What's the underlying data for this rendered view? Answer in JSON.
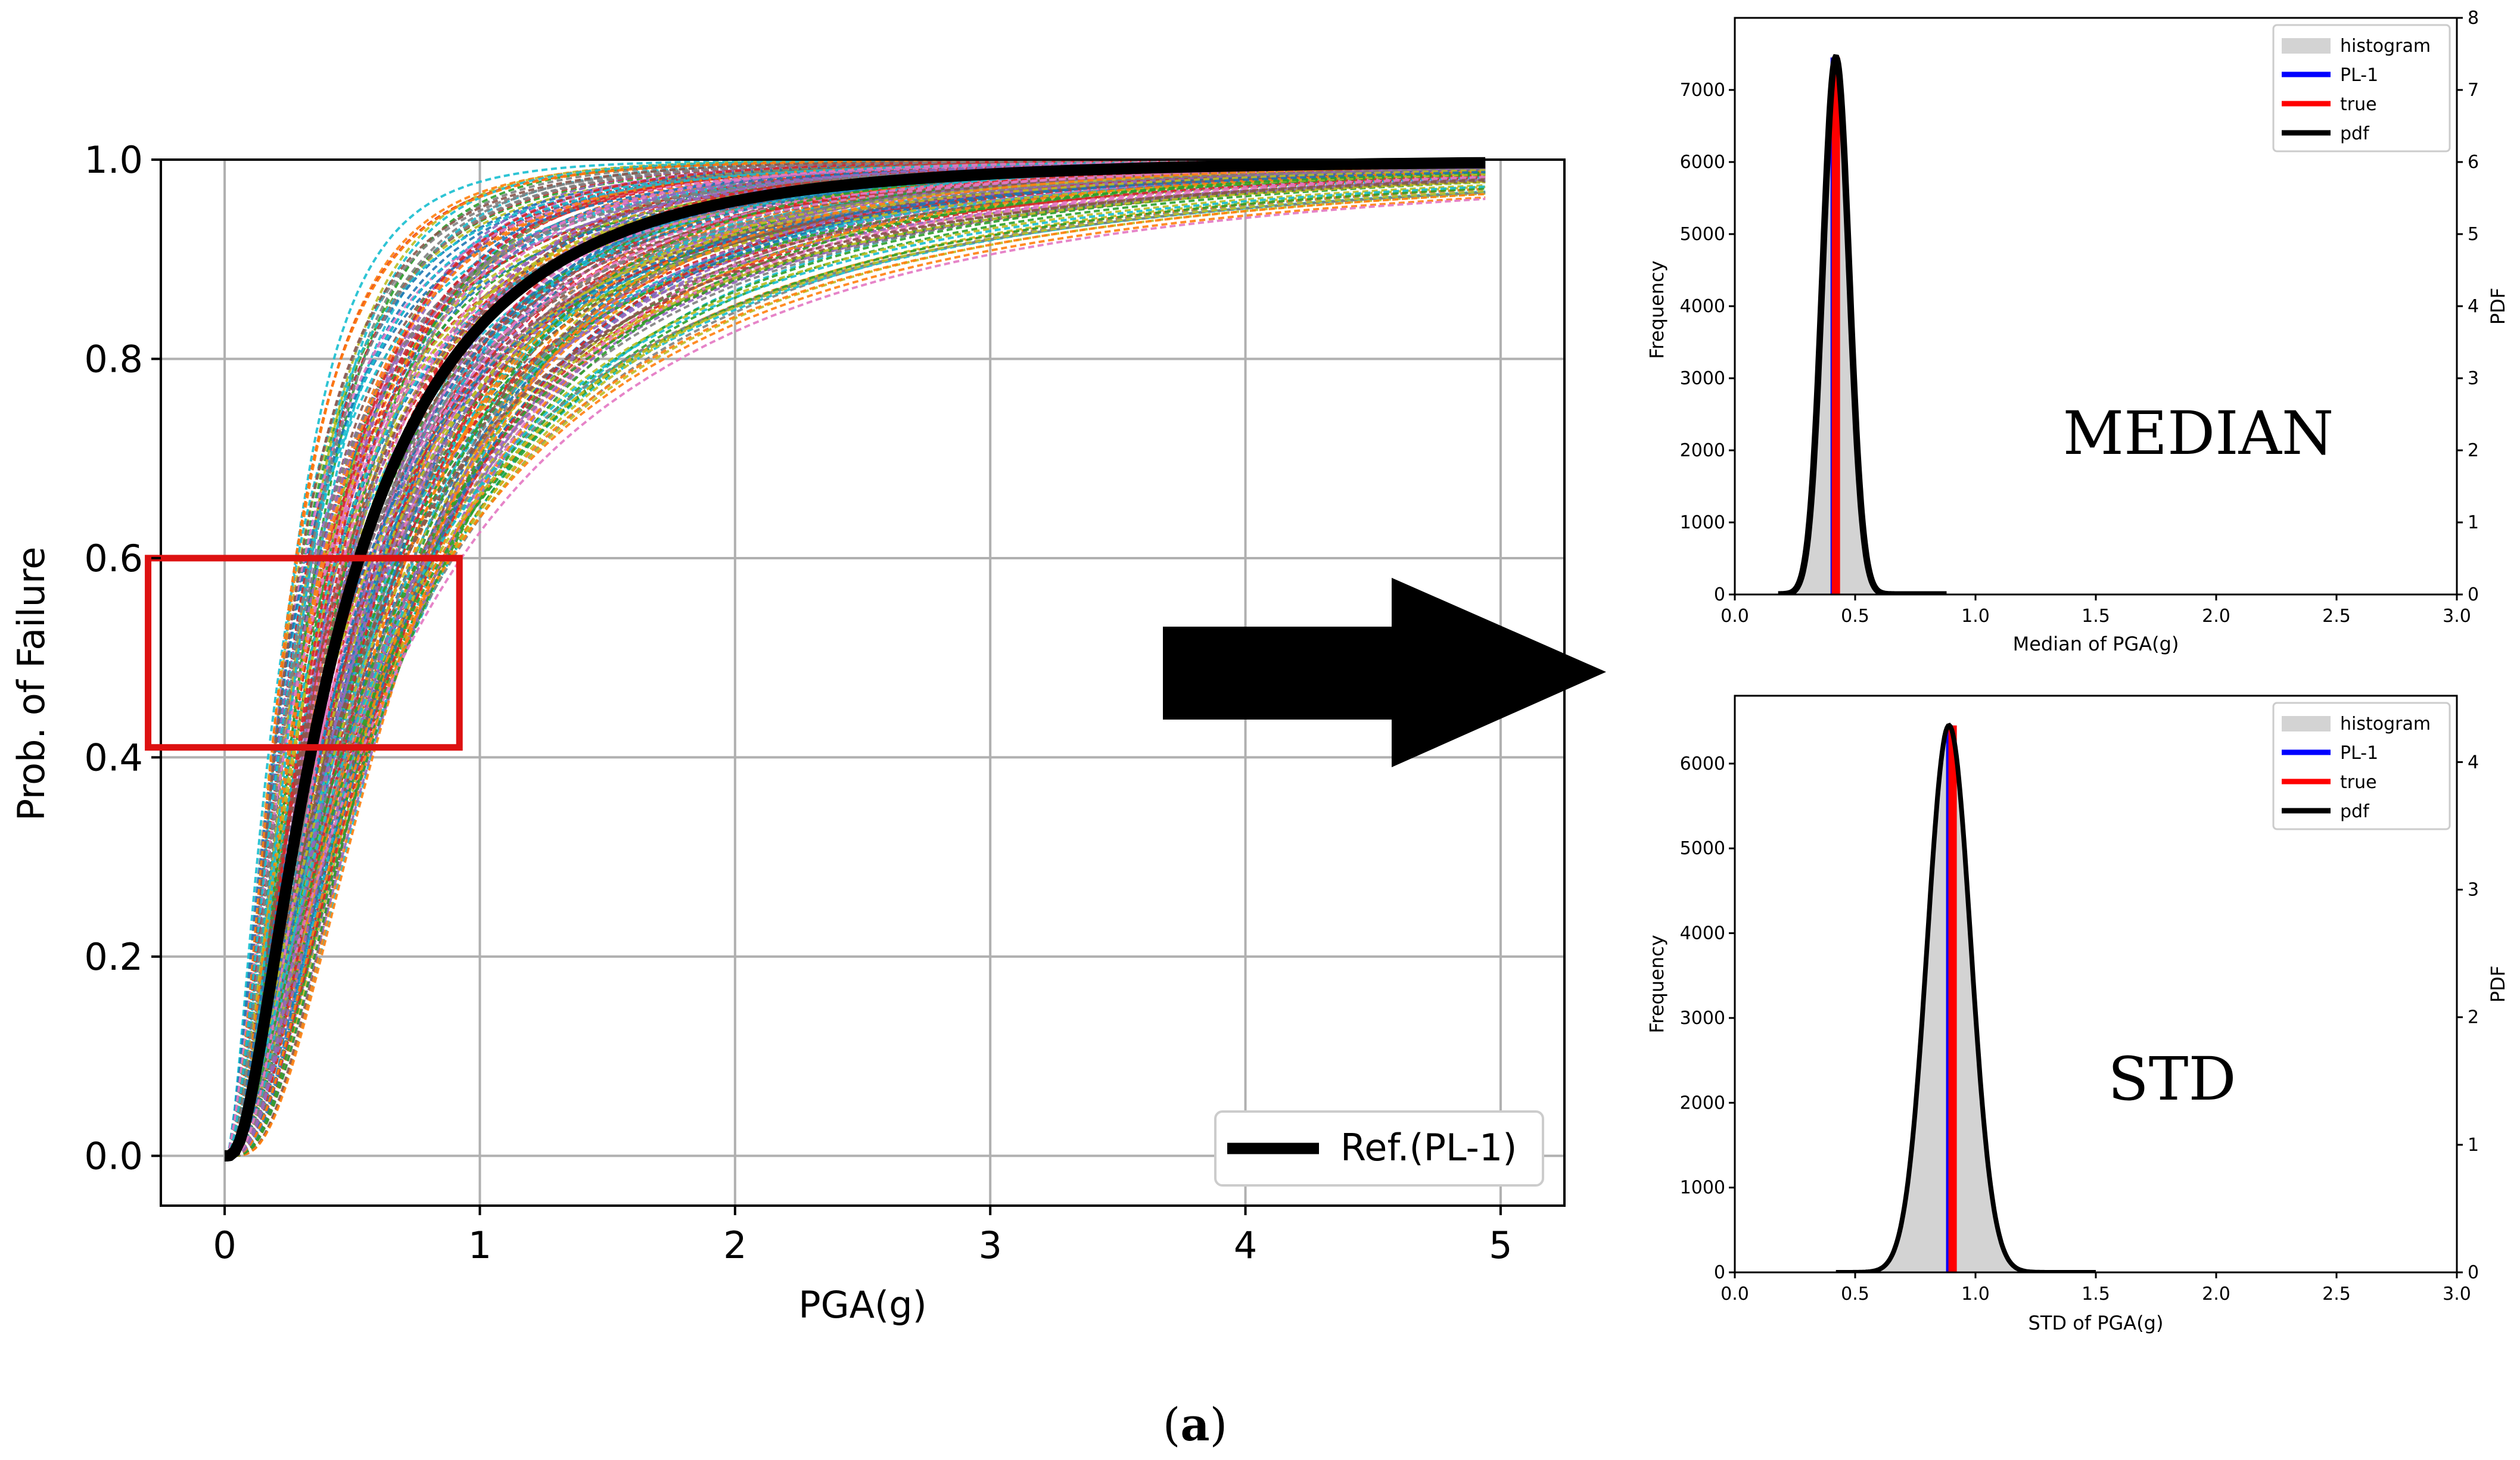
{
  "chart_data": [
    {
      "type": "line",
      "title": "",
      "xlabel": "PGA(g)",
      "ylabel": "Prob. of Failure",
      "xlim": [
        -0.25,
        5.25
      ],
      "ylim": [
        -0.05,
        1.0
      ],
      "xticks": [
        0,
        1,
        2,
        3,
        4,
        5
      ],
      "yticks": [
        "0.0",
        "0.2",
        "0.4",
        "0.6",
        "0.8",
        "1.0"
      ],
      "grid": true,
      "legend": {
        "position": "bottom-right",
        "entries": [
          "Ref.(PL-1)"
        ]
      },
      "reference_curve": {
        "name": "Ref.(PL-1)",
        "distribution": "lognormal-cdf",
        "median": 0.42,
        "beta": 0.9,
        "x_range": [
          0,
          5
        ],
        "color": "#000000"
      },
      "sample_curves": {
        "count": 220,
        "distribution": "lognormal-cdf",
        "median_range": [
          0.22,
          0.7
        ],
        "beta_range": [
          0.7,
          1.15
        ],
        "style": "dashed"
      },
      "highlight_box": {
        "x_range": [
          -0.3,
          0.92
        ],
        "y_range": [
          0.41,
          0.6
        ],
        "color": "#dd1111"
      },
      "series_colors": [
        "#1f77b4",
        "#ff7f0e",
        "#2ca02c",
        "#d62728",
        "#9467bd",
        "#8c564b",
        "#e377c2",
        "#7f7f7f",
        "#bcbd22",
        "#17becf"
      ]
    },
    {
      "type": "bar",
      "title": "",
      "annotation": "MEDIAN",
      "xlabel": "Median of PGA(g)",
      "ylabel": "Frequency",
      "ylabel_right": "PDF",
      "xlim": [
        0.0,
        3.0
      ],
      "ylim": [
        0,
        8000
      ],
      "ylim_right": [
        0,
        8
      ],
      "xticks": [
        "0.0",
        "0.5",
        "1.0",
        "1.5",
        "2.0",
        "2.5",
        "3.0"
      ],
      "yticks": [
        "0",
        "1000",
        "2000",
        "3000",
        "4000",
        "5000",
        "6000",
        "7000"
      ],
      "yticks_right": [
        "0",
        "1",
        "2",
        "3",
        "4",
        "5",
        "6",
        "7",
        "8"
      ],
      "histogram": {
        "center": 0.42,
        "sigma": 0.055,
        "peak_frequency": 7450,
        "x_range": [
          0.18,
          0.88
        ]
      },
      "pl1_value": 0.415,
      "true_value": 0.42,
      "legend": {
        "position": "top-right",
        "entries": [
          "histogram",
          "PL-1",
          "true",
          "pdf"
        ]
      }
    },
    {
      "type": "bar",
      "title": "",
      "annotation": "STD",
      "xlabel": "STD of PGA(g)",
      "ylabel": "Frequency",
      "ylabel_right": "PDF",
      "xlim": [
        0.0,
        3.0
      ],
      "ylim": [
        0,
        6800
      ],
      "ylim_right": [
        0,
        4.52
      ],
      "xticks": [
        "0.0",
        "0.5",
        "1.0",
        "1.5",
        "2.0",
        "2.5",
        "3.0"
      ],
      "yticks": [
        "0",
        "1000",
        "2000",
        "3000",
        "4000",
        "5000",
        "6000"
      ],
      "yticks_right": [
        "0",
        "1",
        "2",
        "3",
        "4"
      ],
      "histogram": {
        "center": 0.89,
        "sigma": 0.09,
        "peak_frequency": 6450,
        "x_range": [
          0.42,
          1.5
        ]
      },
      "pl1_value": 0.895,
      "true_value": 0.905,
      "legend": {
        "position": "top-right",
        "entries": [
          "histogram",
          "PL-1",
          "true",
          "pdf"
        ]
      }
    }
  ],
  "legend_colors": {
    "histogram": "#d3d3d3",
    "PL-1": "#0000ff",
    "true": "#ff0000",
    "pdf": "#000000"
  },
  "caption": {
    "open": "(",
    "label": "a",
    "close": ")"
  }
}
